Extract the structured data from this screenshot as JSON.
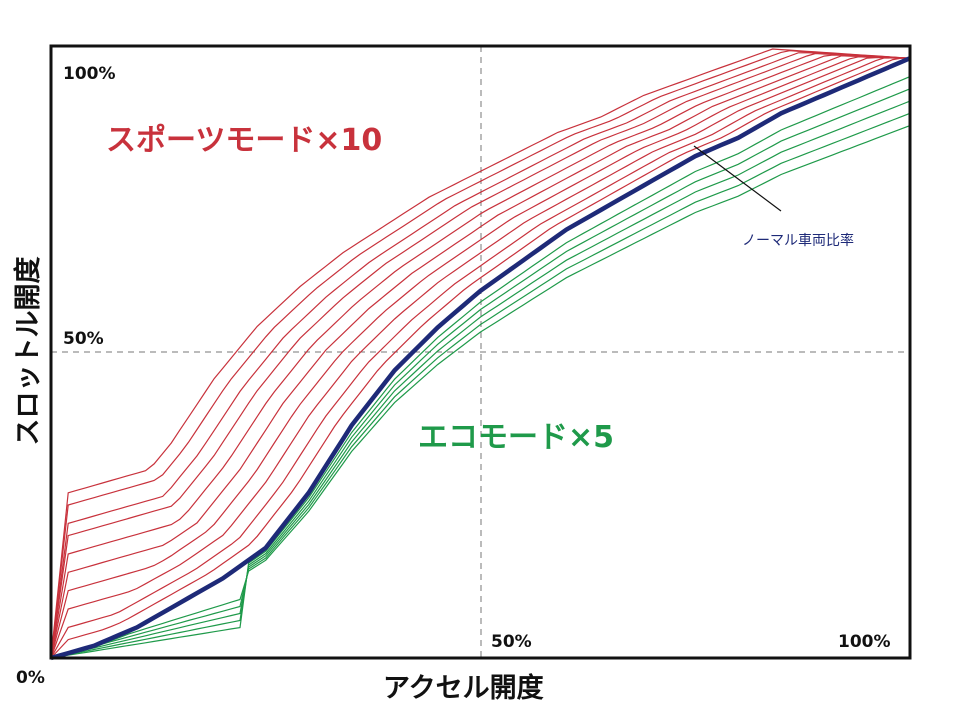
{
  "chart_data": {
    "type": "line",
    "xlabel": "アクセル開度",
    "ylabel": "スロットル開度",
    "x_ticks": [
      "0%",
      "50%",
      "100%"
    ],
    "y_ticks": [
      "100%",
      "50%"
    ],
    "xlim": [
      0,
      100
    ],
    "ylim": [
      0,
      100
    ],
    "grid": "dashed lines at 50%",
    "annotations": {
      "sport": "スポーツモード×10",
      "eco": "エコモード×5",
      "normal": "ノーマル車両比率"
    },
    "colors": {
      "sport": "#c8323c",
      "eco": "#1f9a4a",
      "normal": "#1e2a78"
    },
    "normal_curve": {
      "x": [
        0,
        5,
        10,
        15,
        20,
        25,
        30,
        35,
        40,
        45,
        50,
        55,
        60,
        65,
        70,
        75,
        80,
        85,
        90,
        95,
        100
      ],
      "y": [
        0,
        2,
        5,
        9,
        13,
        18,
        27,
        38,
        47,
        54,
        60,
        65,
        70,
        74,
        78,
        82,
        85,
        89,
        92,
        95,
        98
      ]
    },
    "series": [
      {
        "group": "sport",
        "level": 10,
        "initial_jump": 27
      },
      {
        "group": "sport",
        "level": 9,
        "initial_jump": 25
      },
      {
        "group": "sport",
        "level": 8,
        "initial_jump": 22
      },
      {
        "group": "sport",
        "level": 7,
        "initial_jump": 20
      },
      {
        "group": "sport",
        "level": 6,
        "initial_jump": 17
      },
      {
        "group": "sport",
        "level": 5,
        "initial_jump": 14
      },
      {
        "group": "sport",
        "level": 4,
        "initial_jump": 11
      },
      {
        "group": "sport",
        "level": 3,
        "initial_jump": 8
      },
      {
        "group": "sport",
        "level": 2,
        "initial_jump": 5
      },
      {
        "group": "sport",
        "level": 1,
        "initial_jump": 3
      },
      {
        "group": "normal",
        "level": 0,
        "initial_jump": 0
      },
      {
        "group": "eco",
        "level": 1,
        "final_y": 95
      },
      {
        "group": "eco",
        "level": 2,
        "final_y": 93
      },
      {
        "group": "eco",
        "level": 3,
        "final_y": 91
      },
      {
        "group": "eco",
        "level": 4,
        "final_y": 89
      },
      {
        "group": "eco",
        "level": 5,
        "final_y": 87
      }
    ]
  }
}
